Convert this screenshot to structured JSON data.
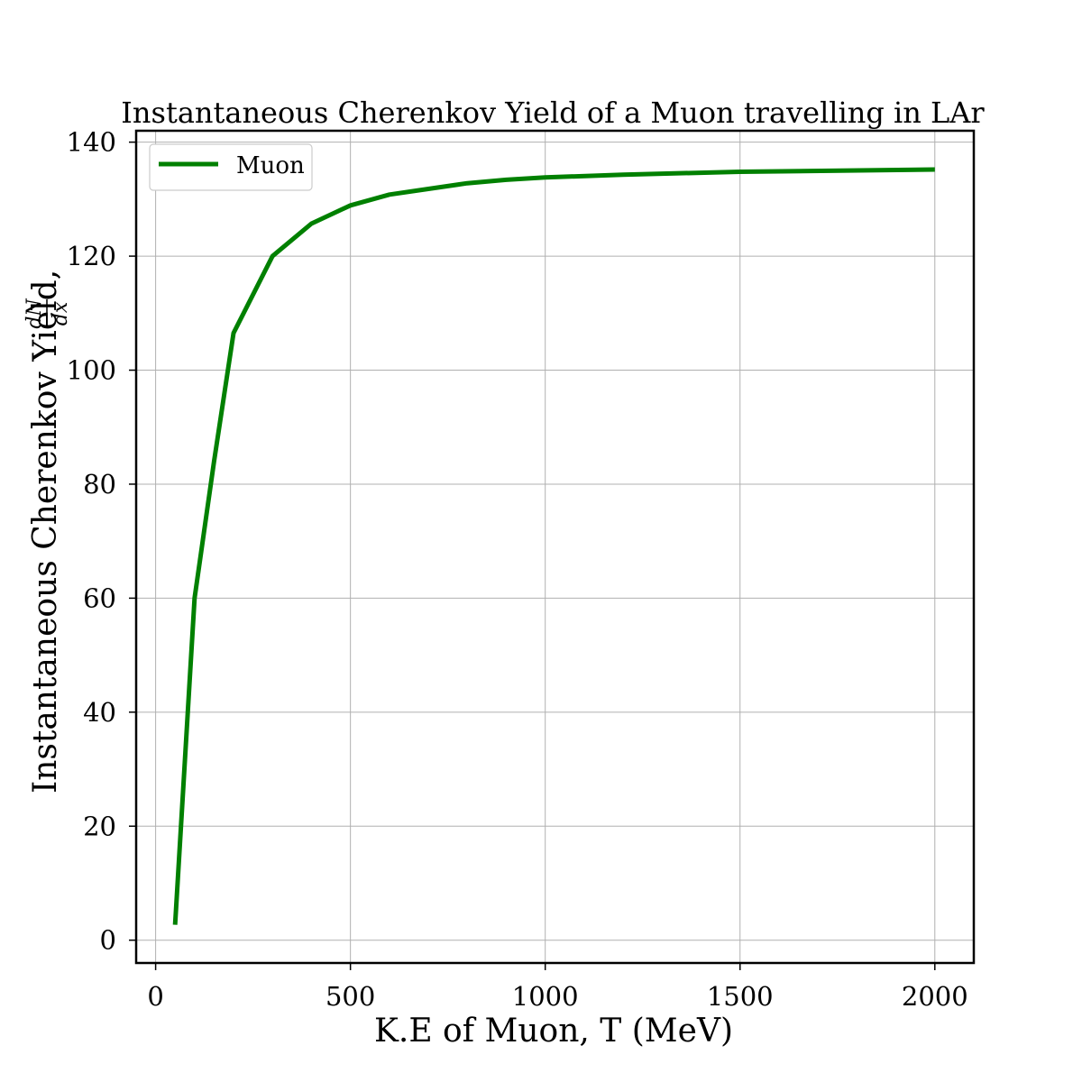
{
  "chart_data": {
    "type": "line",
    "title": "Instantaneous Cherenkov Yield of a Muon travelling in LAr",
    "xlabel": "K.E of Muon, T (MeV)",
    "ylabel": "Instantaneous Cherenkov Yield,",
    "ylabel_fraction": {
      "numerator": "dN",
      "denominator": "dx"
    },
    "xlim": [
      -50,
      2100
    ],
    "ylim": [
      -4,
      142
    ],
    "xticks": [
      0,
      500,
      1000,
      1500,
      2000
    ],
    "yticks": [
      0,
      20,
      40,
      60,
      80,
      100,
      120,
      140
    ],
    "grid": true,
    "legend_position": "top-left",
    "series": [
      {
        "name": "Muon",
        "color": "#008000",
        "x": [
          50,
          100,
          150,
          200,
          300,
          400,
          500,
          600,
          700,
          800,
          900,
          1000,
          1200,
          1500,
          2000
        ],
        "y": [
          2.7,
          60,
          84,
          106.5,
          120,
          125.7,
          128.9,
          130.8,
          131.8,
          132.8,
          133.4,
          133.8,
          134.3,
          134.8,
          135.2
        ]
      }
    ]
  }
}
